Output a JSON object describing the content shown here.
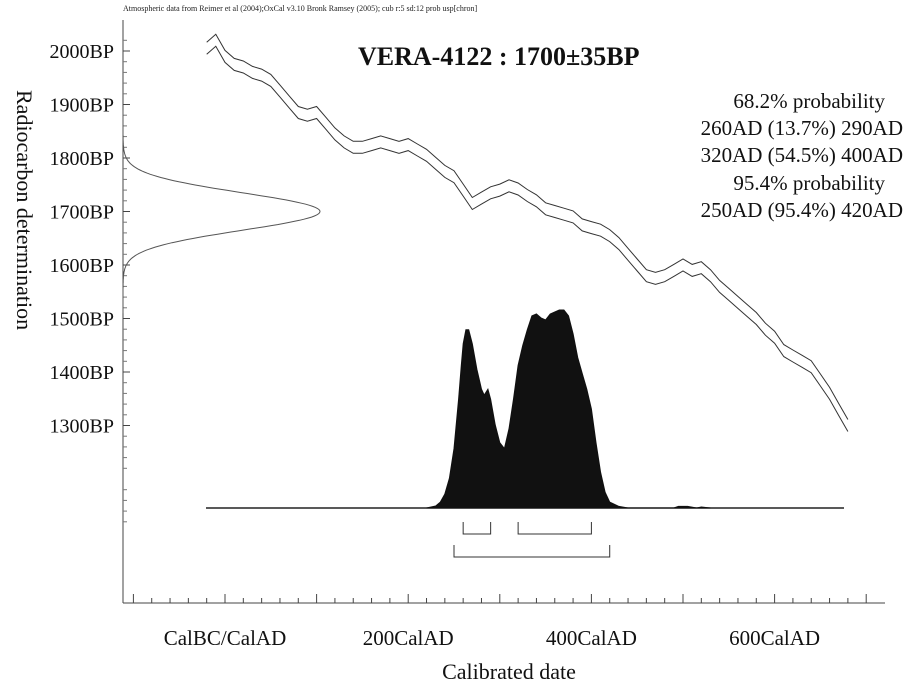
{
  "chart_data": {
    "type": "line",
    "header_note": "Atmospheric data from Reimer et al (2004);OxCal v3.10 Bronk Ramsey (2005); cub r:5 sd:12 prob usp[chron]",
    "title": "VERA-4122 : 1700±35BP",
    "xlabel": "Calibrated date",
    "ylabel": "Radiocarbon determination",
    "x_ticks": [
      {
        "value": 0,
        "label": "CalBC/CalAD"
      },
      {
        "value": 200,
        "label": "200CalAD"
      },
      {
        "value": 400,
        "label": "400CalAD"
      },
      {
        "value": 600,
        "label": "600CalAD"
      }
    ],
    "y_ticks": [
      {
        "value": 2000,
        "label": "2000BP"
      },
      {
        "value": 1900,
        "label": "1900BP"
      },
      {
        "value": 1800,
        "label": "1800BP"
      },
      {
        "value": 1700,
        "label": "1700BP"
      },
      {
        "value": 1600,
        "label": "1600BP"
      },
      {
        "value": 1500,
        "label": "1500BP"
      },
      {
        "value": 1400,
        "label": "1400BP"
      },
      {
        "value": 1300,
        "label": "1300BP"
      }
    ],
    "xlim": [
      -100,
      800
    ],
    "ylim": [
      1080,
      2030
    ],
    "probability_text": [
      "68.2% probability",
      "260AD (13.7%) 290AD",
      "320AD (54.5%) 400AD",
      "95.4% probability",
      "250AD (95.4%) 420AD"
    ],
    "ranges_68": [
      [
        260,
        290
      ],
      [
        320,
        400
      ]
    ],
    "ranges_95": [
      [
        250,
        420
      ]
    ],
    "measurement": {
      "mean": 1700,
      "sd": 35
    },
    "calibration_curve": [
      [
        -20,
        2005
      ],
      [
        -10,
        2020
      ],
      [
        0,
        1990
      ],
      [
        10,
        1975
      ],
      [
        20,
        1970
      ],
      [
        30,
        1960
      ],
      [
        40,
        1955
      ],
      [
        50,
        1945
      ],
      [
        60,
        1925
      ],
      [
        70,
        1905
      ],
      [
        80,
        1885
      ],
      [
        90,
        1880
      ],
      [
        100,
        1885
      ],
      [
        110,
        1865
      ],
      [
        120,
        1845
      ],
      [
        130,
        1830
      ],
      [
        140,
        1820
      ],
      [
        150,
        1820
      ],
      [
        160,
        1825
      ],
      [
        170,
        1830
      ],
      [
        180,
        1825
      ],
      [
        190,
        1820
      ],
      [
        200,
        1825
      ],
      [
        210,
        1815
      ],
      [
        220,
        1805
      ],
      [
        230,
        1790
      ],
      [
        240,
        1775
      ],
      [
        250,
        1765
      ],
      [
        260,
        1740
      ],
      [
        270,
        1715
      ],
      [
        280,
        1725
      ],
      [
        290,
        1735
      ],
      [
        300,
        1740
      ],
      [
        310,
        1748
      ],
      [
        320,
        1742
      ],
      [
        330,
        1730
      ],
      [
        340,
        1720
      ],
      [
        350,
        1705
      ],
      [
        360,
        1700
      ],
      [
        370,
        1695
      ],
      [
        380,
        1690
      ],
      [
        390,
        1675
      ],
      [
        400,
        1670
      ],
      [
        410,
        1665
      ],
      [
        420,
        1655
      ],
      [
        430,
        1640
      ],
      [
        440,
        1620
      ],
      [
        450,
        1600
      ],
      [
        460,
        1580
      ],
      [
        470,
        1575
      ],
      [
        480,
        1580
      ],
      [
        490,
        1590
      ],
      [
        500,
        1600
      ],
      [
        510,
        1590
      ],
      [
        520,
        1595
      ],
      [
        530,
        1580
      ],
      [
        540,
        1560
      ],
      [
        550,
        1545
      ],
      [
        560,
        1530
      ],
      [
        570,
        1515
      ],
      [
        580,
        1500
      ],
      [
        590,
        1480
      ],
      [
        600,
        1465
      ],
      [
        610,
        1440
      ],
      [
        620,
        1430
      ],
      [
        630,
        1420
      ],
      [
        640,
        1410
      ],
      [
        650,
        1385
      ],
      [
        660,
        1360
      ],
      [
        670,
        1330
      ],
      [
        680,
        1300
      ]
    ],
    "posterior_distribution": [
      [
        220,
        0.0
      ],
      [
        230,
        0.01
      ],
      [
        235,
        0.03
      ],
      [
        240,
        0.07
      ],
      [
        245,
        0.15
      ],
      [
        250,
        0.3
      ],
      [
        255,
        0.55
      ],
      [
        258,
        0.72
      ],
      [
        260,
        0.83
      ],
      [
        263,
        0.9
      ],
      [
        266,
        0.9
      ],
      [
        270,
        0.83
      ],
      [
        275,
        0.7
      ],
      [
        280,
        0.6
      ],
      [
        283,
        0.57
      ],
      [
        287,
        0.6
      ],
      [
        290,
        0.55
      ],
      [
        295,
        0.42
      ],
      [
        300,
        0.33
      ],
      [
        305,
        0.3
      ],
      [
        310,
        0.4
      ],
      [
        315,
        0.55
      ],
      [
        320,
        0.72
      ],
      [
        325,
        0.82
      ],
      [
        330,
        0.9
      ],
      [
        335,
        0.97
      ],
      [
        340,
        0.98
      ],
      [
        345,
        0.96
      ],
      [
        350,
        0.95
      ],
      [
        355,
        0.98
      ],
      [
        360,
        0.99
      ],
      [
        365,
        1.0
      ],
      [
        370,
        1.0
      ],
      [
        375,
        0.97
      ],
      [
        380,
        0.88
      ],
      [
        385,
        0.76
      ],
      [
        390,
        0.68
      ],
      [
        395,
        0.6
      ],
      [
        400,
        0.5
      ],
      [
        405,
        0.33
      ],
      [
        410,
        0.18
      ],
      [
        415,
        0.08
      ],
      [
        420,
        0.03
      ],
      [
        430,
        0.008
      ],
      [
        440,
        0.0
      ],
      [
        490,
        0.0
      ],
      [
        495,
        0.008
      ],
      [
        505,
        0.008
      ],
      [
        515,
        0.0
      ],
      [
        520,
        0.005
      ],
      [
        530,
        0.0
      ]
    ]
  }
}
